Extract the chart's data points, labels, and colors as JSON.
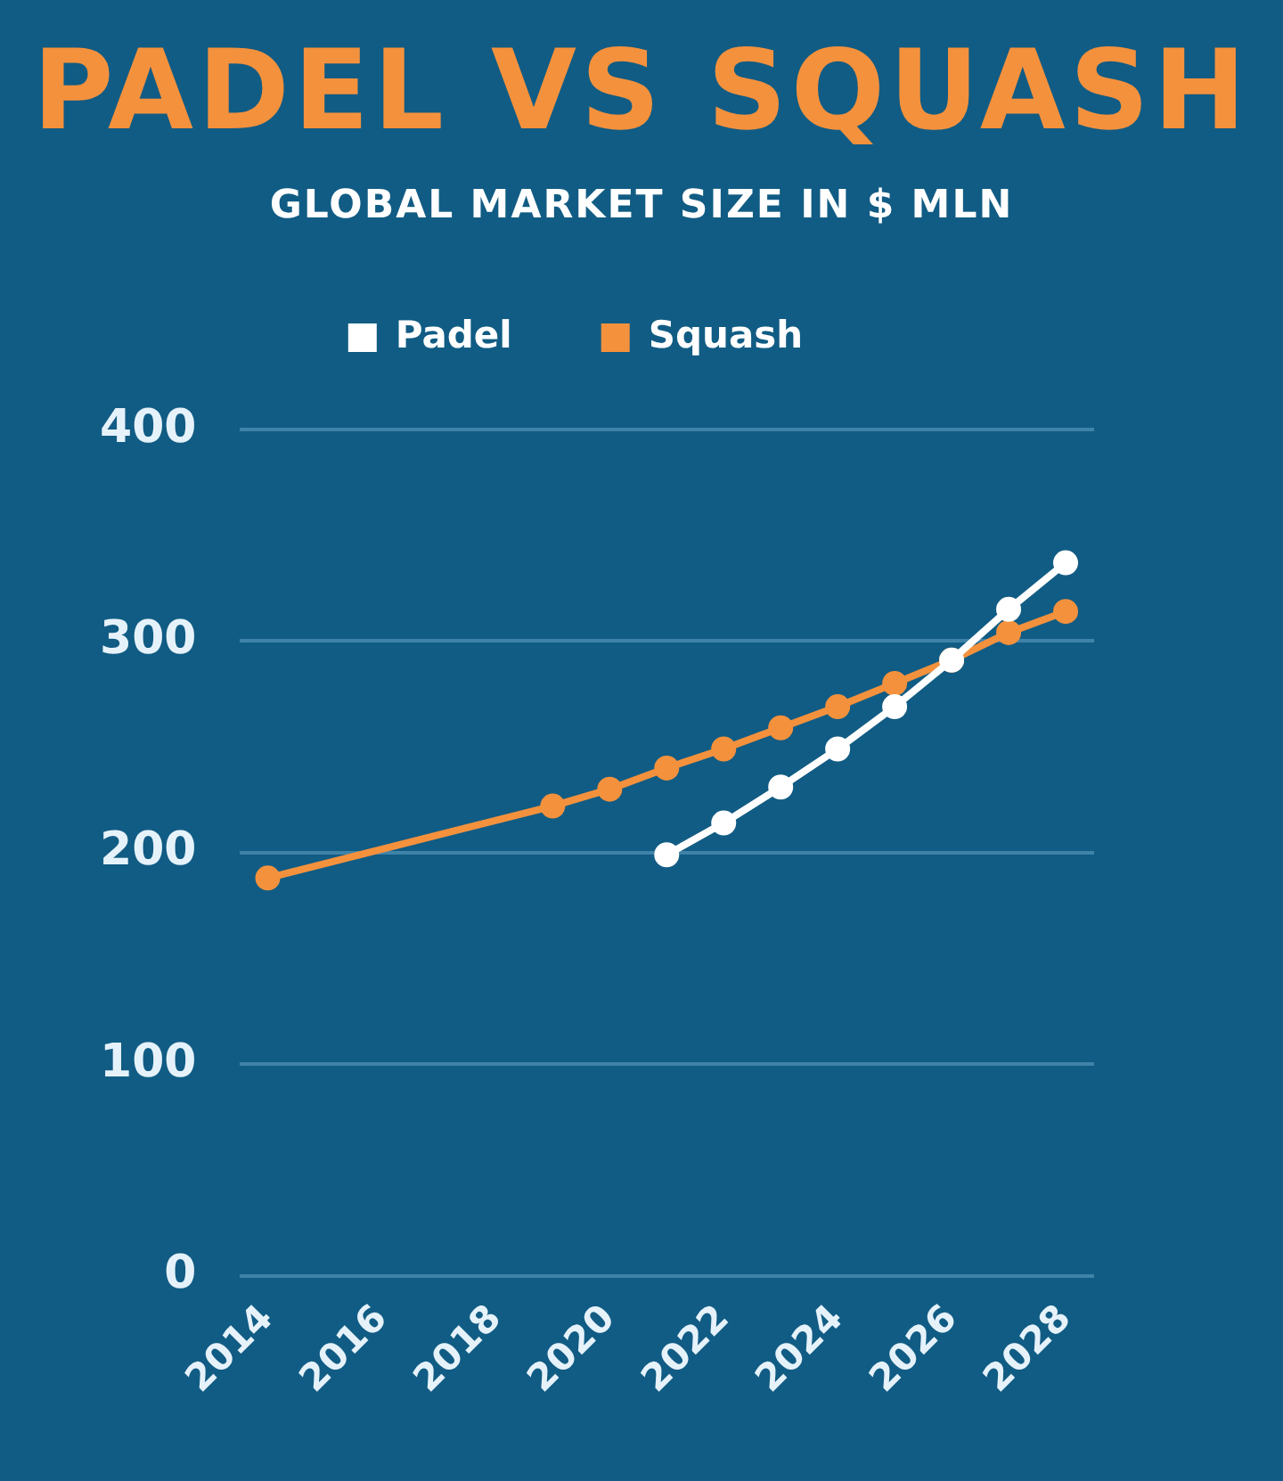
{
  "chart_data": {
    "type": "line",
    "title": "PADEL VS SQUASH",
    "subtitle": "GLOBAL MARKET SIZE IN $ MLN",
    "series": [
      {
        "name": "Padel",
        "color": "#ffffff",
        "x": [
          2021,
          2022,
          2023,
          2024,
          2025,
          2026,
          2027,
          2028
        ],
        "values": [
          199,
          214,
          231,
          249,
          269,
          291,
          315,
          337
        ]
      },
      {
        "name": "Squash",
        "color": "#f4913d",
        "x": [
          2014,
          2019,
          2020,
          2021,
          2022,
          2023,
          2024,
          2025,
          2026,
          2027,
          2028
        ],
        "values": [
          188,
          222,
          230,
          240,
          249,
          259,
          269,
          280,
          291,
          304,
          314
        ]
      }
    ],
    "xlim": [
      2013.5,
      2028.5
    ],
    "xticks": [
      2014,
      2016,
      2018,
      2020,
      2022,
      2024,
      2026,
      2028
    ],
    "ylim": [
      0,
      400
    ],
    "yticks": [
      0,
      100,
      200,
      300,
      400
    ],
    "grid": "y",
    "legend": "top",
    "marker": "circle"
  }
}
